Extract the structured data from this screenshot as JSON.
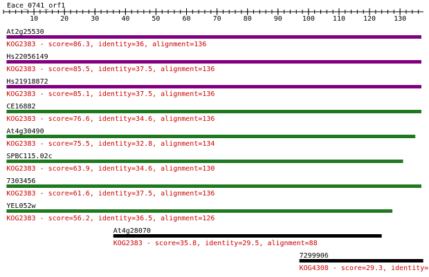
{
  "title": "Eace_0741_orf1",
  "ruler": {
    "lim": [
      0,
      137
    ],
    "ticks": [
      10,
      20,
      30,
      40,
      50,
      60,
      70,
      80,
      90,
      100,
      110,
      120,
      130
    ]
  },
  "hits": [
    {
      "name": "At2g25530",
      "color": "#800080",
      "start": 1,
      "end": 137,
      "summary": "KOG2383 - score=86.3, identity=36, alignment=136"
    },
    {
      "name": "Hs22056149",
      "color": "#800080",
      "start": 1,
      "end": 137,
      "summary": "KOG2383 - score=85.5, identity=37.5, alignment=136"
    },
    {
      "name": "Hs21918872",
      "color": "#800080",
      "start": 1,
      "end": 137,
      "summary": "KOG2383 - score=85.1, identity=37.5, alignment=136"
    },
    {
      "name": "CE16882",
      "color": "#1f7a1f",
      "start": 1,
      "end": 137,
      "summary": "KOG2383 - score=76.6, identity=34.6, alignment=136"
    },
    {
      "name": "At4g30490",
      "color": "#1f7a1f",
      "start": 1,
      "end": 135,
      "summary": "KOG2383 - score=75.5, identity=32.8, alignment=134"
    },
    {
      "name": "SPBC115.02c",
      "color": "#1f7a1f",
      "start": 1,
      "end": 131,
      "summary": "KOG2383 - score=63.9, identity=34.6, alignment=130"
    },
    {
      "name": "7303456",
      "color": "#1f7a1f",
      "start": 1,
      "end": 137,
      "summary": "KOG2383 - score=61.6, identity=37.5, alignment=136"
    },
    {
      "name": "YEL052w",
      "color": "#1f7a1f",
      "start": 1,
      "end": 127.5,
      "summary": "KOG2383 - score=56.2, identity=36.5, alignment=126"
    },
    {
      "name": "At4g28070",
      "color": "#000000",
      "start": 36,
      "end": 124,
      "summary": "KOG2383 - score=35.8, identity=29.5, alignment=88"
    },
    {
      "name": "7299906",
      "color": "#000000",
      "start": 97,
      "end": 137.6,
      "summary": "KOG4308 - score=29.3, identity="
    }
  ]
}
